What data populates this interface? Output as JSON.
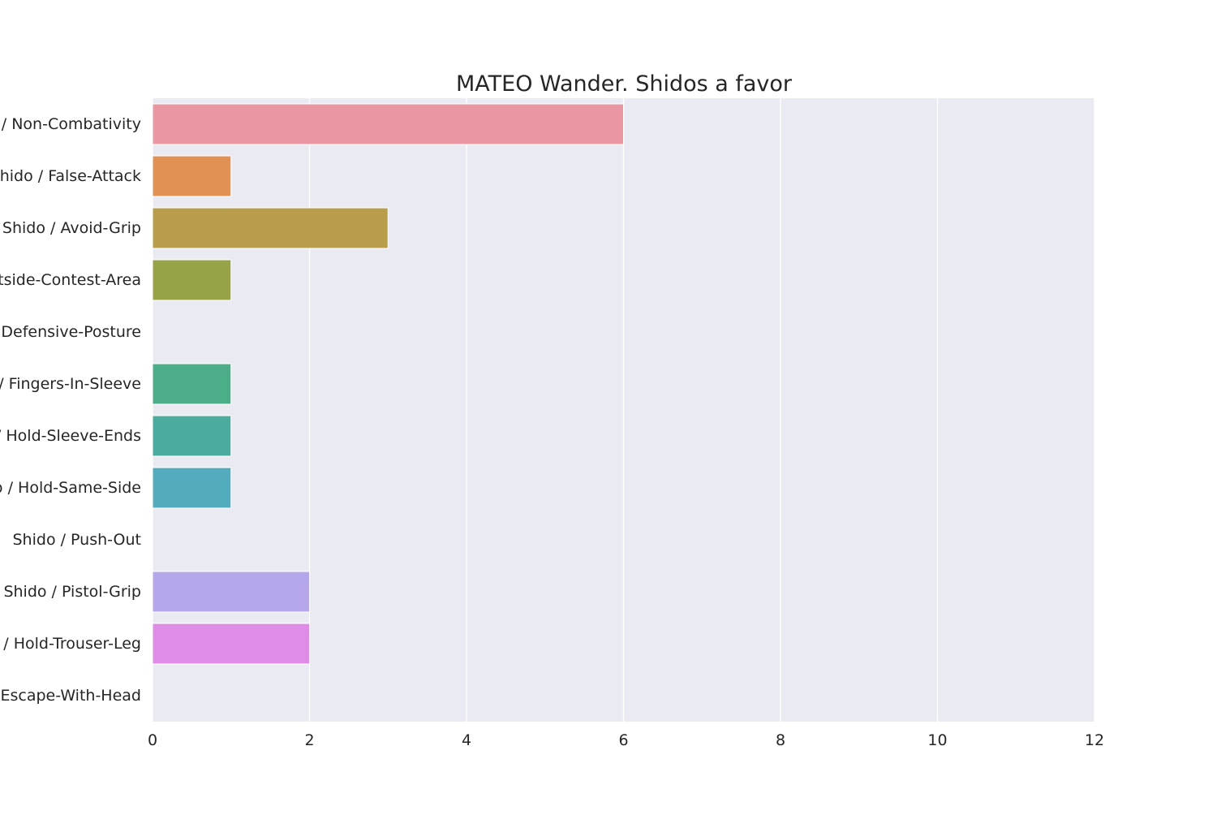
{
  "chart_data": {
    "type": "bar",
    "orientation": "horizontal",
    "title": "MATEO Wander. Shidos a favor",
    "xlabel": "",
    "ylabel": "",
    "xlim": [
      0,
      12
    ],
    "x_ticks": [
      0,
      2,
      4,
      6,
      8,
      10,
      12
    ],
    "grid": true,
    "legend": "none",
    "categories": [
      "Shido / Non-Combativity",
      "Shido / False-Attack",
      "Shido / Avoid-Grip",
      "Shido / Outside-Contest-Area",
      "Shido / Defensive-Posture",
      "Shido / Fingers-In-Sleeve",
      "Shido / Hold-Sleeve-Ends",
      "Shido / Hold-Same-Side",
      "Shido / Push-Out",
      "Shido / Pistol-Grip",
      "Shido / Hold-Trouser-Leg",
      "Shido / Escape-With-Head"
    ],
    "values": [
      6,
      1,
      3,
      1,
      0,
      1,
      1,
      1,
      0,
      2,
      2,
      0
    ],
    "colors": [
      "#ea96a3",
      "#e19153",
      "#b89d4a",
      "#98a246",
      "#64ab4b",
      "#4bae88",
      "#4bab9f",
      "#52acbd",
      "#5fa6e6",
      "#b6a7eb",
      "#df8ce7",
      "#eb8fc6"
    ],
    "background_color": "#eaeaf2",
    "grid_color": "#ffffff"
  }
}
